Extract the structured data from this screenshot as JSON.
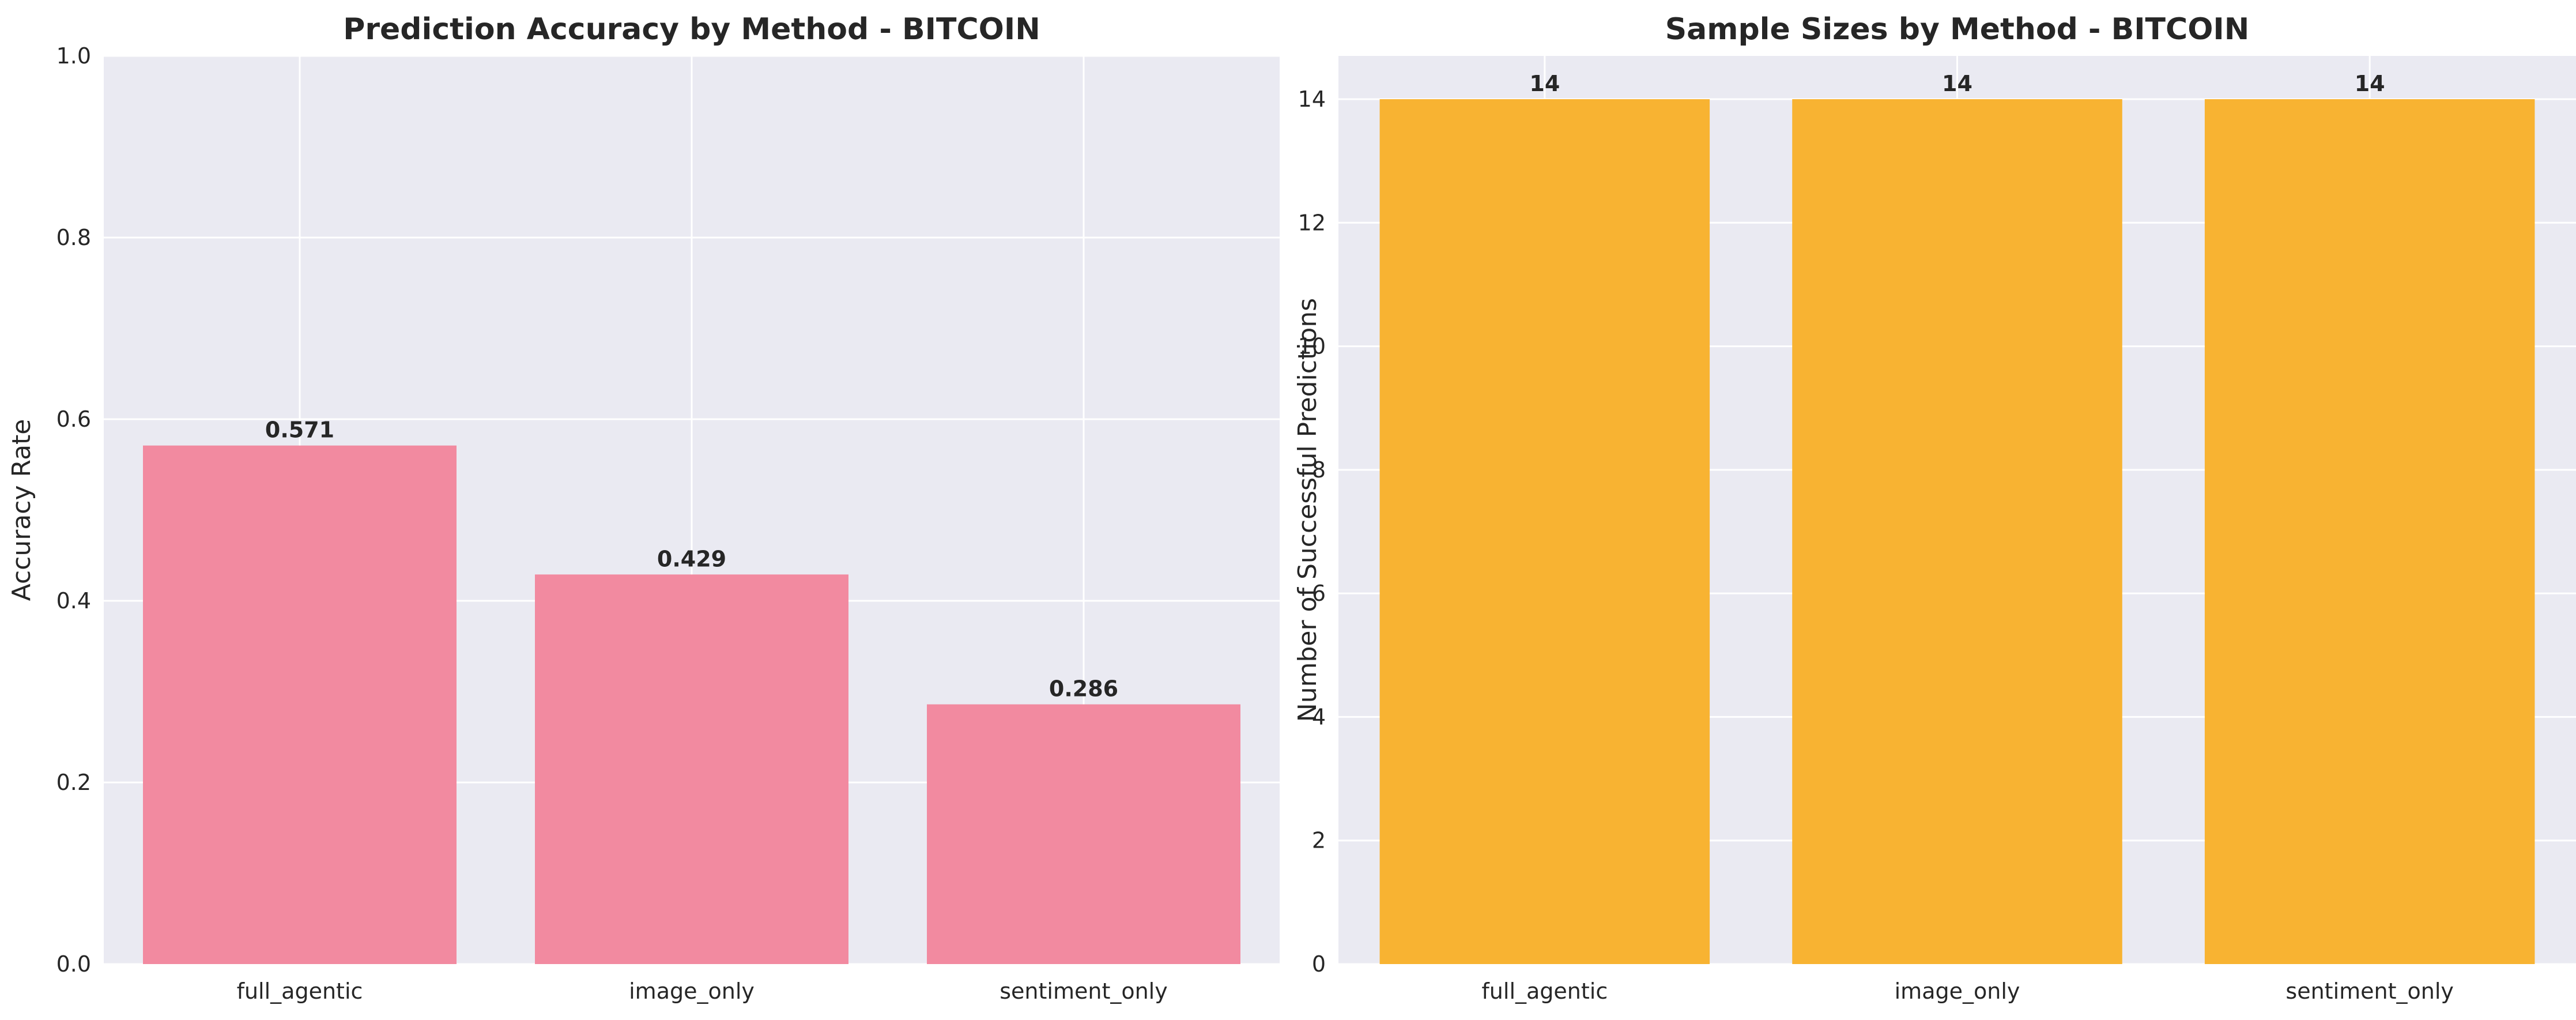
{
  "chart_data": [
    {
      "type": "bar",
      "title": "Prediction Accuracy by Method - BITCOIN",
      "xlabel": "",
      "ylabel": "Accuracy Rate",
      "categories": [
        "full_agentic",
        "image_only",
        "sentiment_only"
      ],
      "values": [
        0.571,
        0.429,
        0.286
      ],
      "value_labels": [
        "0.571",
        "0.429",
        "0.286"
      ],
      "ylim": [
        0,
        1.0
      ],
      "yticks": [
        0.0,
        0.2,
        0.4,
        0.6,
        0.8,
        1.0
      ],
      "ytick_labels": [
        "0.0",
        "0.2",
        "0.4",
        "0.6",
        "0.8",
        "1.0"
      ],
      "bar_color": "#f28aa0",
      "background": "#eaeaf2",
      "grid": true
    },
    {
      "type": "bar",
      "title": "Sample Sizes by Method - BITCOIN",
      "xlabel": "",
      "ylabel": "Number of Successful Predictions",
      "categories": [
        "full_agentic",
        "image_only",
        "sentiment_only"
      ],
      "values": [
        14,
        14,
        14
      ],
      "value_labels": [
        "14",
        "14",
        "14"
      ],
      "ylim": [
        0,
        14.7
      ],
      "yticks": [
        0,
        2,
        4,
        6,
        8,
        10,
        12,
        14
      ],
      "ytick_labels": [
        "0",
        "2",
        "4",
        "6",
        "8",
        "10",
        "12",
        "14"
      ],
      "bar_color": "#f8b332",
      "background": "#eaeaf2",
      "grid": true
    }
  ]
}
